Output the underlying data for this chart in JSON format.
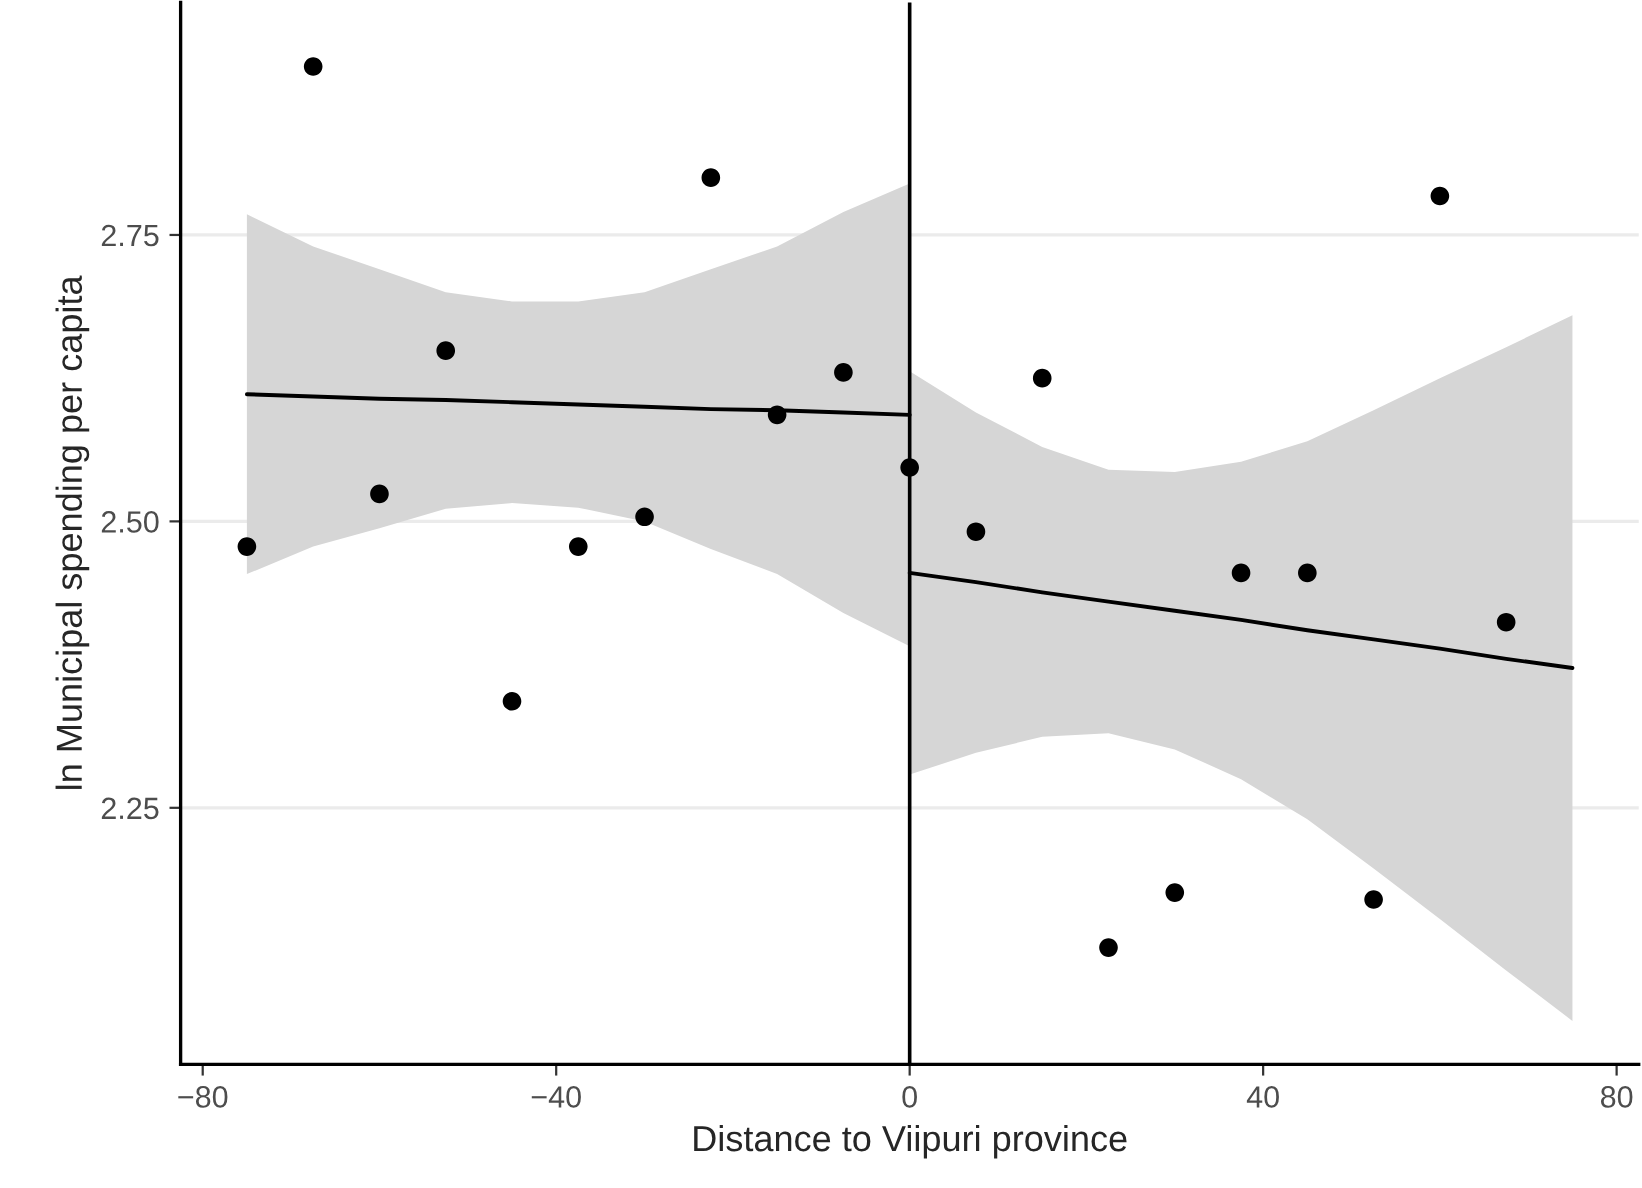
{
  "chart_data": {
    "type": "scatter",
    "xlabel": "Distance to Viipuri province",
    "ylabel": "ln Municipal spending per capita",
    "xlim": [
      -82.5,
      82.5
    ],
    "xticks": [
      {
        "value": -80,
        "label": "−80"
      },
      {
        "value": -40,
        "label": "−40"
      },
      0,
      40,
      80
    ],
    "ylim": [
      2.026,
      2.953
    ],
    "yticks": [
      {
        "value": 2.25,
        "label": "2.25"
      },
      {
        "value": 2.5,
        "label": "2.50"
      },
      {
        "value": 2.75,
        "label": "2.75"
      }
    ],
    "grid": "y",
    "legend": false,
    "ref_lines": [
      {
        "axis": "x",
        "value": 0,
        "color": "#000000"
      }
    ],
    "series": [
      {
        "marker": "circle",
        "color": "#000000",
        "x": [
          -75,
          -67.5,
          -60,
          -52.5,
          -45,
          -37.5,
          -30,
          -22.5,
          -15,
          -7.5,
          0,
          7.5,
          15,
          22.5,
          30,
          37.5,
          45,
          52.5,
          60,
          67.5
        ],
        "values": [
          2.478,
          2.897,
          2.524,
          2.649,
          2.343,
          2.478,
          2.504,
          2.8,
          2.593,
          2.63,
          2.547,
          2.491,
          2.625,
          2.128,
          2.176,
          2.455,
          2.455,
          2.17,
          2.784,
          2.412
        ]
      },
      {
        "type": "line",
        "color": "#000000",
        "x": [
          -75,
          -67.5,
          -60,
          -52.5,
          -45,
          -37.5,
          -30,
          -22.5,
          -15,
          -7.5,
          0
        ],
        "values": [
          2.611,
          2.609,
          2.607,
          2.606,
          2.604,
          2.602,
          2.6,
          2.598,
          2.597,
          2.595,
          2.593
        ],
        "upper": [
          2.768,
          2.74,
          2.72,
          2.7,
          2.692,
          2.692,
          2.7,
          2.72,
          2.74,
          2.77,
          2.795
        ],
        "lower": [
          2.454,
          2.478,
          2.494,
          2.511,
          2.516,
          2.512,
          2.5,
          2.476,
          2.454,
          2.42,
          2.391
        ]
      },
      {
        "type": "line",
        "color": "#000000",
        "x": [
          0,
          7.5,
          15,
          22.5,
          30,
          37.5,
          45,
          52.5,
          60,
          67.5,
          75
        ],
        "values": [
          2.455,
          2.447,
          2.438,
          2.43,
          2.422,
          2.414,
          2.405,
          2.397,
          2.389,
          2.38,
          2.372
        ],
        "upper": [
          2.631,
          2.595,
          2.565,
          2.545,
          2.543,
          2.552,
          2.57,
          2.597,
          2.625,
          2.652,
          2.68
        ],
        "lower": [
          2.279,
          2.298,
          2.312,
          2.315,
          2.301,
          2.275,
          2.24,
          2.197,
          2.153,
          2.108,
          2.064
        ]
      }
    ]
  }
}
